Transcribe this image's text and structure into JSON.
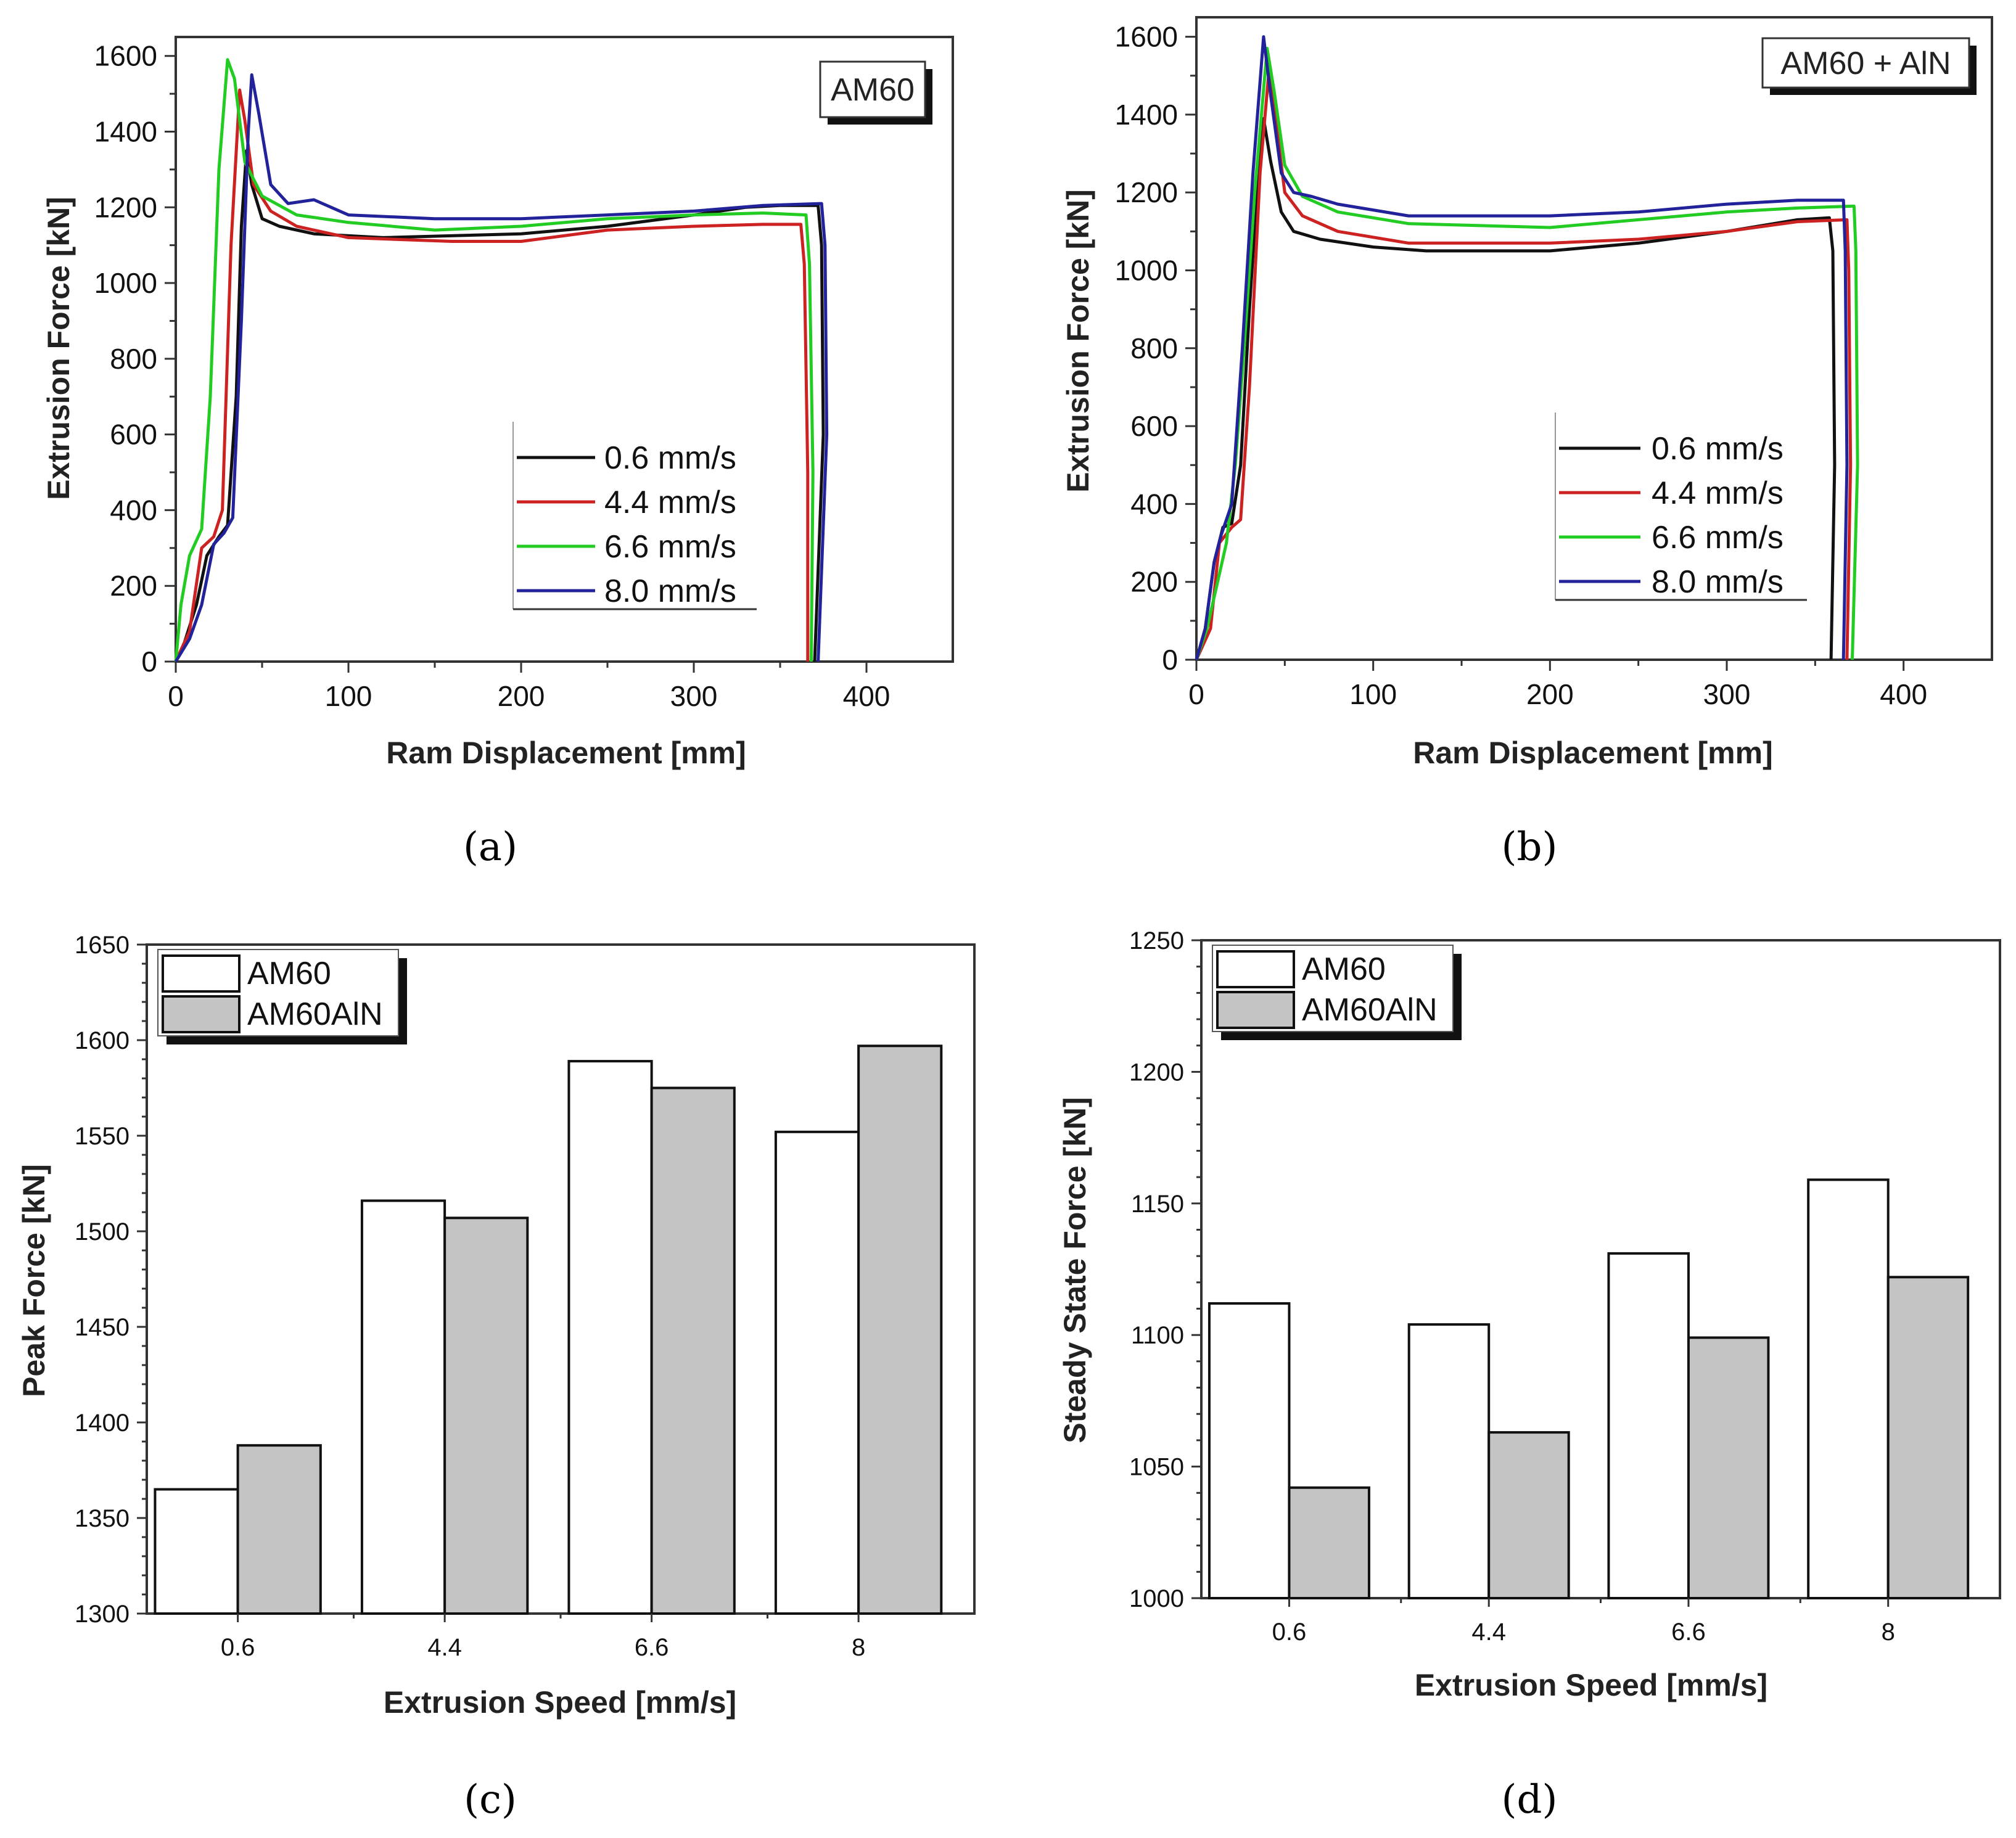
{
  "chart_data": [
    {
      "id": "a",
      "type": "line",
      "panel_label": "(a)",
      "tag": "AM60",
      "xlabel": "Ram Displacement [mm]",
      "ylabel": "Extrusion Force [kN]",
      "xlim": [
        0,
        450
      ],
      "ylim": [
        0,
        1650
      ],
      "xticks": [
        0,
        100,
        200,
        300,
        400
      ],
      "yticks": [
        0,
        200,
        400,
        600,
        800,
        1000,
        1200,
        1400,
        1600
      ],
      "legend": "lower-right",
      "series": [
        {
          "name": "0.6 mm/s",
          "color": "#111111",
          "points": [
            [
              0,
              0
            ],
            [
              5,
              50
            ],
            [
              12,
              150
            ],
            [
              18,
              280
            ],
            [
              25,
              330
            ],
            [
              30,
              360
            ],
            [
              35,
              700
            ],
            [
              38,
              1150
            ],
            [
              41,
              1350
            ],
            [
              44,
              1260
            ],
            [
              50,
              1170
            ],
            [
              60,
              1150
            ],
            [
              80,
              1130
            ],
            [
              120,
              1120
            ],
            [
              200,
              1130
            ],
            [
              250,
              1150
            ],
            [
              300,
              1180
            ],
            [
              330,
              1200
            ],
            [
              350,
              1205
            ],
            [
              372,
              1205
            ],
            [
              374,
              1100
            ],
            [
              375,
              600
            ],
            [
              370,
              0
            ]
          ]
        },
        {
          "name": "4.4 mm/s",
          "color": "#cc2222",
          "points": [
            [
              0,
              0
            ],
            [
              8,
              80
            ],
            [
              15,
              300
            ],
            [
              22,
              330
            ],
            [
              27,
              400
            ],
            [
              32,
              1100
            ],
            [
              37,
              1510
            ],
            [
              40,
              1430
            ],
            [
              45,
              1260
            ],
            [
              55,
              1190
            ],
            [
              70,
              1150
            ],
            [
              100,
              1120
            ],
            [
              160,
              1110
            ],
            [
              200,
              1110
            ],
            [
              250,
              1140
            ],
            [
              300,
              1150
            ],
            [
              340,
              1155
            ],
            [
              362,
              1155
            ],
            [
              364,
              1050
            ],
            [
              366,
              500
            ],
            [
              366,
              0
            ]
          ]
        },
        {
          "name": "6.6 mm/s",
          "color": "#22cc22",
          "points": [
            [
              0,
              0
            ],
            [
              3,
              150
            ],
            [
              8,
              280
            ],
            [
              15,
              350
            ],
            [
              20,
              700
            ],
            [
              25,
              1300
            ],
            [
              30,
              1590
            ],
            [
              34,
              1540
            ],
            [
              40,
              1320
            ],
            [
              50,
              1230
            ],
            [
              70,
              1180
            ],
            [
              100,
              1160
            ],
            [
              150,
              1140
            ],
            [
              200,
              1150
            ],
            [
              250,
              1170
            ],
            [
              300,
              1180
            ],
            [
              340,
              1185
            ],
            [
              365,
              1180
            ],
            [
              367,
              1050
            ],
            [
              369,
              500
            ],
            [
              368,
              0
            ]
          ]
        },
        {
          "name": "8.0 mm/s",
          "color": "#22229a",
          "points": [
            [
              0,
              0
            ],
            [
              8,
              60
            ],
            [
              15,
              150
            ],
            [
              22,
              310
            ],
            [
              28,
              340
            ],
            [
              33,
              380
            ],
            [
              38,
              900
            ],
            [
              42,
              1400
            ],
            [
              44,
              1550
            ],
            [
              48,
              1450
            ],
            [
              55,
              1260
            ],
            [
              65,
              1210
            ],
            [
              80,
              1220
            ],
            [
              100,
              1180
            ],
            [
              150,
              1170
            ],
            [
              200,
              1170
            ],
            [
              250,
              1180
            ],
            [
              300,
              1190
            ],
            [
              340,
              1205
            ],
            [
              374,
              1210
            ],
            [
              376,
              1100
            ],
            [
              377,
              600
            ],
            [
              372,
              0
            ]
          ]
        }
      ]
    },
    {
      "id": "b",
      "type": "line",
      "panel_label": "(b)",
      "tag": "AM60 + AlN",
      "xlabel": "Ram Displacement [mm]",
      "ylabel": "Extrusion Force [kN]",
      "xlim": [
        0,
        450
      ],
      "ylim": [
        0,
        1650
      ],
      "xticks": [
        0,
        100,
        200,
        300,
        400
      ],
      "yticks": [
        0,
        200,
        400,
        600,
        800,
        1000,
        1200,
        1400,
        1600
      ],
      "legend": "lower-right",
      "series": [
        {
          "name": "0.6 mm/s",
          "color": "#111111",
          "points": [
            [
              0,
              0
            ],
            [
              5,
              80
            ],
            [
              10,
              250
            ],
            [
              15,
              340
            ],
            [
              20,
              350
            ],
            [
              25,
              500
            ],
            [
              30,
              900
            ],
            [
              35,
              1250
            ],
            [
              38,
              1390
            ],
            [
              42,
              1280
            ],
            [
              48,
              1150
            ],
            [
              55,
              1100
            ],
            [
              70,
              1080
            ],
            [
              100,
              1060
            ],
            [
              130,
              1050
            ],
            [
              200,
              1050
            ],
            [
              250,
              1070
            ],
            [
              300,
              1100
            ],
            [
              340,
              1130
            ],
            [
              358,
              1135
            ],
            [
              360,
              1050
            ],
            [
              361,
              500
            ],
            [
              359,
              0
            ]
          ]
        },
        {
          "name": "4.4 mm/s",
          "color": "#cc2222",
          "points": [
            [
              0,
              0
            ],
            [
              8,
              80
            ],
            [
              13,
              300
            ],
            [
              20,
              340
            ],
            [
              25,
              360
            ],
            [
              30,
              700
            ],
            [
              36,
              1250
            ],
            [
              41,
              1510
            ],
            [
              45,
              1380
            ],
            [
              50,
              1200
            ],
            [
              60,
              1140
            ],
            [
              80,
              1100
            ],
            [
              120,
              1070
            ],
            [
              200,
              1070
            ],
            [
              250,
              1080
            ],
            [
              300,
              1100
            ],
            [
              340,
              1125
            ],
            [
              368,
              1130
            ],
            [
              369,
              1000
            ],
            [
              370,
              500
            ],
            [
              368,
              0
            ]
          ]
        },
        {
          "name": "6.6 mm/s",
          "color": "#22cc22",
          "points": [
            [
              0,
              0
            ],
            [
              6,
              80
            ],
            [
              12,
              200
            ],
            [
              17,
              300
            ],
            [
              22,
              500
            ],
            [
              27,
              800
            ],
            [
              33,
              1200
            ],
            [
              40,
              1570
            ],
            [
              44,
              1460
            ],
            [
              50,
              1270
            ],
            [
              60,
              1190
            ],
            [
              80,
              1150
            ],
            [
              120,
              1120
            ],
            [
              200,
              1110
            ],
            [
              250,
              1130
            ],
            [
              300,
              1150
            ],
            [
              340,
              1160
            ],
            [
              372,
              1165
            ],
            [
              373,
              1050
            ],
            [
              374,
              500
            ],
            [
              371,
              0
            ]
          ]
        },
        {
          "name": "8.0 mm/s",
          "color": "#22229a",
          "points": [
            [
              0,
              0
            ],
            [
              5,
              80
            ],
            [
              10,
              250
            ],
            [
              14,
              320
            ],
            [
              20,
              400
            ],
            [
              26,
              800
            ],
            [
              32,
              1250
            ],
            [
              38,
              1600
            ],
            [
              42,
              1450
            ],
            [
              48,
              1250
            ],
            [
              55,
              1200
            ],
            [
              65,
              1190
            ],
            [
              80,
              1170
            ],
            [
              120,
              1140
            ],
            [
              200,
              1140
            ],
            [
              250,
              1150
            ],
            [
              300,
              1170
            ],
            [
              340,
              1180
            ],
            [
              366,
              1180
            ],
            [
              367,
              1050
            ],
            [
              368,
              500
            ],
            [
              366,
              0
            ]
          ]
        }
      ]
    },
    {
      "id": "c",
      "type": "bar",
      "panel_label": "(c)",
      "xlabel": "Extrusion Speed [mm/s]",
      "ylabel": "Peak Force [kN]",
      "categories": [
        "0.6",
        "4.4",
        "6.6",
        "8"
      ],
      "ylim": [
        1300,
        1650
      ],
      "yticks": [
        1300,
        1350,
        1400,
        1450,
        1500,
        1550,
        1600,
        1650
      ],
      "legend": "top-left",
      "series": [
        {
          "name": "AM60",
          "color": "#ffffff",
          "values": [
            1365,
            1516,
            1589,
            1552
          ]
        },
        {
          "name": "AM60AlN",
          "color": "#c4c4c4",
          "values": [
            1388,
            1507,
            1575,
            1597
          ]
        }
      ]
    },
    {
      "id": "d",
      "type": "bar",
      "panel_label": "(d)",
      "xlabel": "Extrusion Speed [mm/s]",
      "ylabel": "Steady State Force [kN]",
      "categories": [
        "0.6",
        "4.4",
        "6.6",
        "8"
      ],
      "ylim": [
        1000,
        1250
      ],
      "yticks": [
        1000,
        1050,
        1100,
        1150,
        1200,
        1250
      ],
      "legend": "top-left",
      "series": [
        {
          "name": "AM60",
          "color": "#ffffff",
          "values": [
            1112,
            1104,
            1131,
            1159
          ]
        },
        {
          "name": "AM60AlN",
          "color": "#c4c4c4",
          "values": [
            1042,
            1063,
            1099,
            1122
          ]
        }
      ]
    }
  ]
}
